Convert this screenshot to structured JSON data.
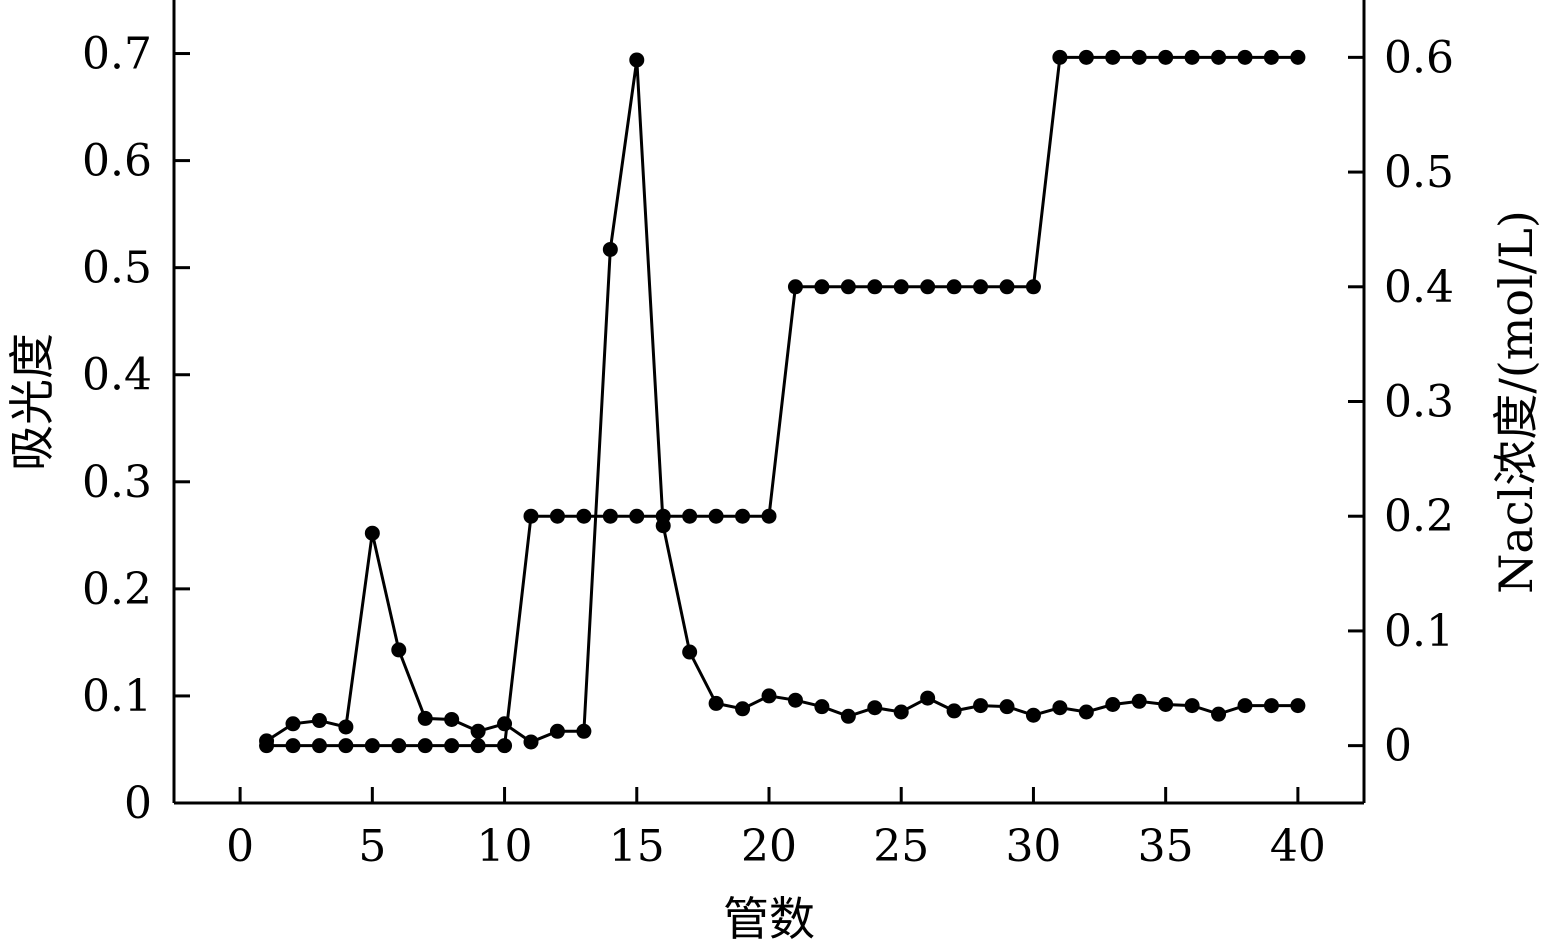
{
  "chart_data": {
    "type": "line",
    "xlabel": "管数",
    "ylabel_left": "吸光度",
    "ylabel_right": "Nacl浓度/(mol/L)",
    "xlim": [
      -2.5,
      42.5
    ],
    "ylim_left": [
      0,
      0.75
    ],
    "ylim_right": [
      -0.05,
      0.65
    ],
    "x_ticks": [
      0,
      5,
      10,
      15,
      20,
      25,
      30,
      35,
      40
    ],
    "y_ticks_left": [
      0,
      0.1,
      0.2,
      0.3,
      0.4,
      0.5,
      0.6,
      0.7
    ],
    "y_ticks_right": [
      0,
      0.1,
      0.2,
      0.3,
      0.4,
      0.5,
      0.6
    ],
    "x_tick_labels": [
      "0",
      "5",
      "10",
      "15",
      "20",
      "25",
      "30",
      "35",
      "40"
    ],
    "y_tick_labels_left": [
      "0",
      "0.1",
      "0.2",
      "0.3",
      "0.4",
      "0.5",
      "0.6",
      "0.7"
    ],
    "y_tick_labels_right": [
      "0",
      "0.1",
      "0.2",
      "0.3",
      "0.4",
      "0.5",
      "0.6"
    ],
    "grid": false,
    "series": [
      {
        "axis": "left",
        "x": [
          1,
          2,
          3,
          4,
          5,
          6,
          7,
          8,
          9,
          10,
          11,
          12,
          13,
          14,
          15,
          16,
          17,
          18,
          19,
          20,
          21,
          22,
          23,
          24,
          25,
          26,
          27,
          28,
          29,
          30,
          31,
          32,
          33,
          34,
          35,
          36,
          37,
          38,
          39,
          40
        ],
        "values": [
          0.058,
          0.074,
          0.077,
          0.071,
          0.252,
          0.143,
          0.079,
          0.078,
          0.067,
          0.074,
          0.057,
          0.067,
          0.067,
          0.517,
          0.694,
          0.259,
          0.141,
          0.093,
          0.088,
          0.1,
          0.096,
          0.09,
          0.081,
          0.089,
          0.085,
          0.098,
          0.086,
          0.091,
          0.09,
          0.082,
          0.089,
          0.085,
          0.092,
          0.095,
          0.092,
          0.091,
          0.083,
          0.091,
          0.091,
          0.091
        ]
      },
      {
        "axis": "right",
        "x": [
          1,
          2,
          3,
          4,
          5,
          6,
          7,
          8,
          9,
          10,
          11,
          12,
          13,
          14,
          15,
          16,
          17,
          18,
          19,
          20,
          21,
          22,
          23,
          24,
          25,
          26,
          27,
          28,
          29,
          30,
          31,
          32,
          33,
          34,
          35,
          36,
          37,
          38,
          39,
          40
        ],
        "values": [
          0,
          0,
          0,
          0,
          0,
          0,
          0,
          0,
          0,
          0,
          0.2,
          0.2,
          0.2,
          0.2,
          0.2,
          0.2,
          0.2,
          0.2,
          0.2,
          0.2,
          0.4,
          0.4,
          0.4,
          0.4,
          0.4,
          0.4,
          0.4,
          0.4,
          0.4,
          0.4,
          0.6,
          0.6,
          0.6,
          0.6,
          0.6,
          0.6,
          0.6,
          0.6,
          0.6,
          0.6
        ]
      }
    ]
  }
}
